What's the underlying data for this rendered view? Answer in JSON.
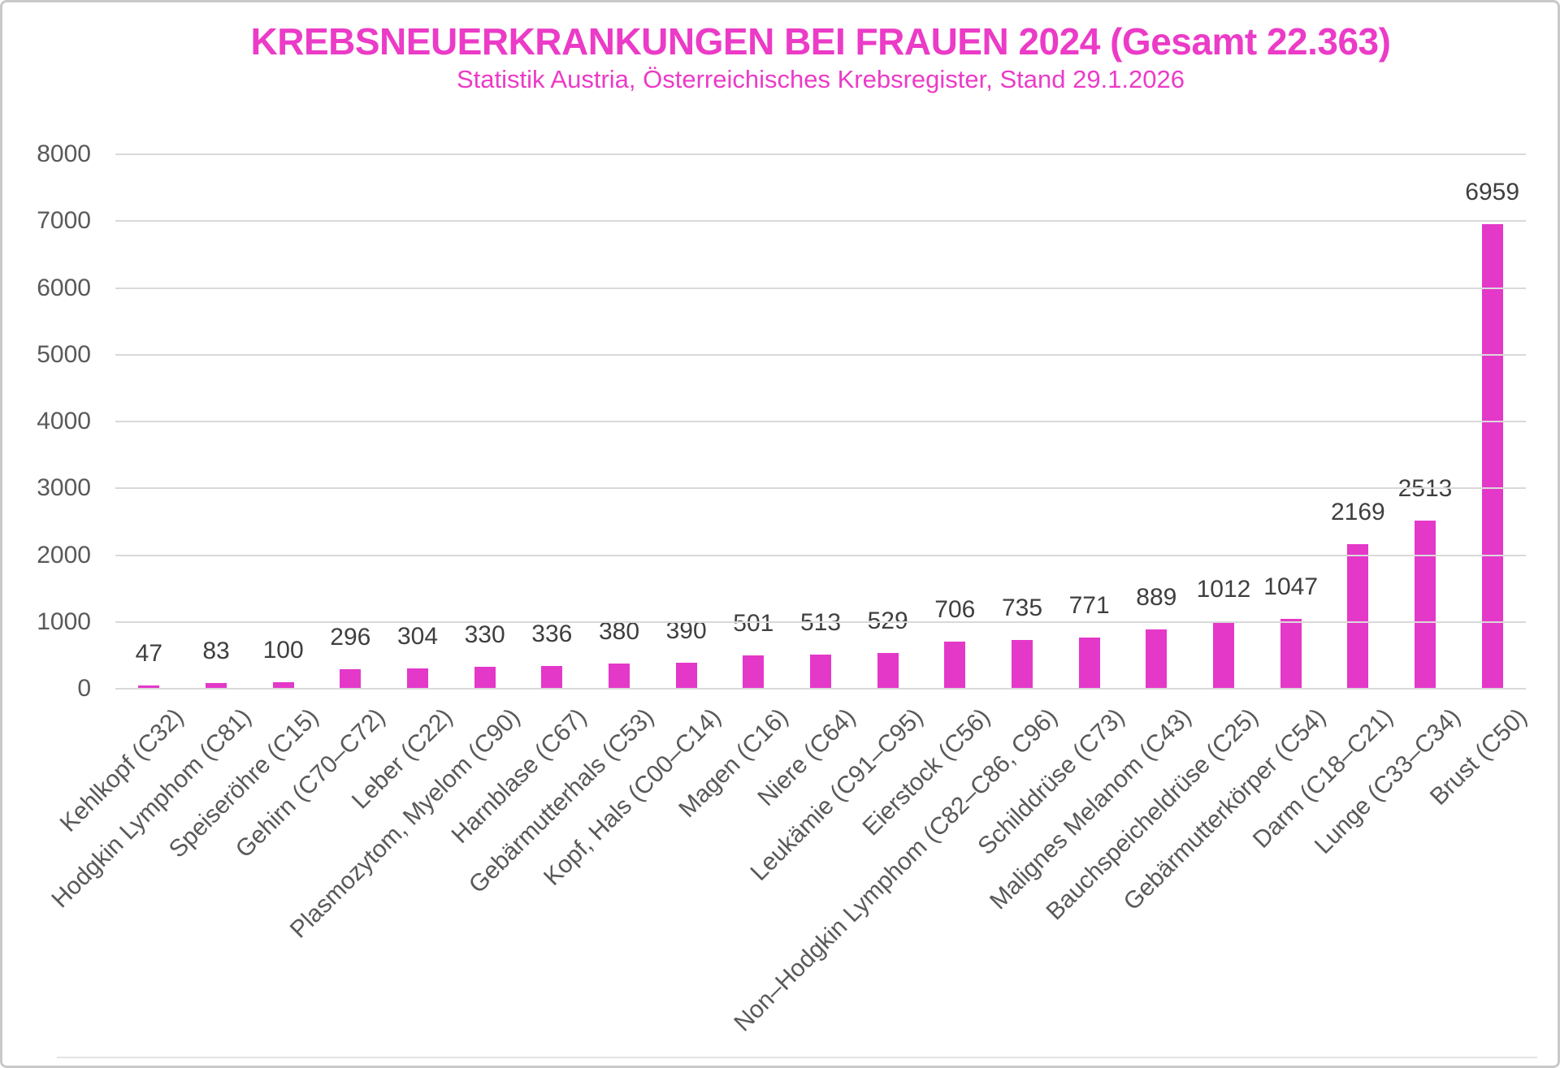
{
  "chart_data": {
    "type": "bar",
    "title": "KREBSNEUERKRANKUNGEN BEI FRAUEN 2024 (Gesamt 22.363)",
    "subtitle": "Statistik Austria, Österreichisches Krebsregister, Stand 29.1.2026",
    "categories": [
      "Kehlkopf (C32)",
      "Hodgkin Lymphom (C81)",
      "Speiseröhre (C15)",
      "Gehirn (C70–C72)",
      "Leber (C22)",
      "Plasmozytom, Myelom (C90)",
      "Harnblase (C67)",
      "Gebärmutterhals (C53)",
      "Kopf, Hals (C00–C14)",
      "Magen (C16)",
      "Niere (C64)",
      "Leukämie (C91–C95)",
      "Eierstock (C56)",
      "Non–Hodgkin Lymphom (C82–C86, C96)",
      "Schilddrüse (C73)",
      "Malignes Melanom (C43)",
      "Bauchspeicheldrüse (C25)",
      "Gebärmutterkörper (C54)",
      "Darm (C18–C21)",
      "Lunge (C33–C34)",
      "Brust (C50)"
    ],
    "values": [
      47,
      83,
      100,
      296,
      304,
      330,
      336,
      380,
      390,
      501,
      513,
      529,
      706,
      735,
      771,
      889,
      1012,
      1047,
      2169,
      2513,
      6959
    ],
    "xlabel": "",
    "ylabel": "",
    "ylim": [
      0,
      8000
    ],
    "yticks": [
      0,
      1000,
      2000,
      3000,
      4000,
      5000,
      6000,
      7000,
      8000
    ],
    "grid": true,
    "legend": "none",
    "data_labels": true,
    "colors": {
      "title": "#eb3bc7",
      "subtitle": "#eb3bc7",
      "bar": "#e438c9",
      "value_label": "#3f3f3f",
      "axis_text": "#595959",
      "gridline": "#d9d9d9"
    }
  }
}
